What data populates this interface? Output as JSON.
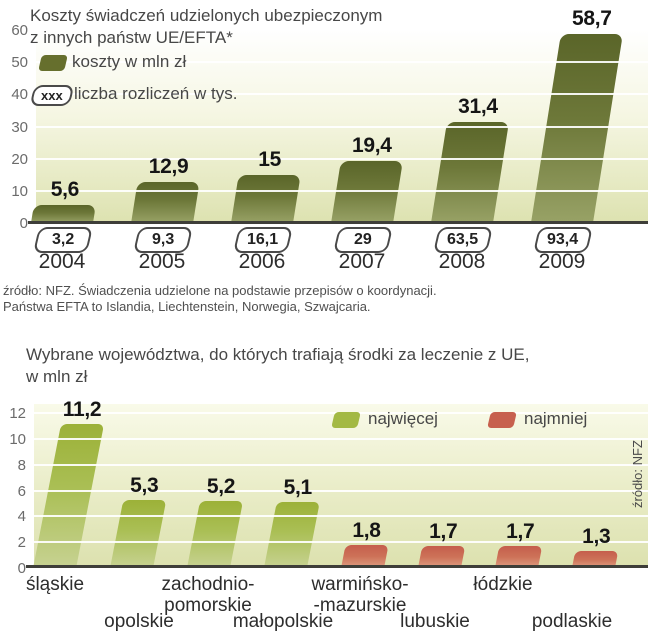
{
  "chart_data": [
    {
      "type": "bar",
      "title_lines": [
        "Koszty świadczeń udzielonych ubezpieczonym",
        "z innych państw UE/EFTA*"
      ],
      "legend": {
        "costs_label": "koszty w mln zł",
        "costs_color": "#666f2d",
        "pill_symbol": "xxx",
        "pill_label": "liczba rozliczeń w tys."
      },
      "categories": [
        "2004",
        "2005",
        "2006",
        "2007",
        "2008",
        "2009"
      ],
      "series": [
        {
          "name": "koszty w mln zł",
          "values": [
            5.6,
            12.9,
            15,
            19.4,
            31.4,
            58.7
          ],
          "labels": [
            "5,6",
            "12,9",
            "15",
            "19,4",
            "31,4",
            "58,7"
          ]
        },
        {
          "name": "liczba rozliczeń w tys.",
          "values": [
            3.2,
            9.3,
            16.1,
            29,
            63.5,
            93.4
          ],
          "labels": [
            "3,2",
            "9,3",
            "16,1",
            "29",
            "63,5",
            "93,4"
          ]
        }
      ],
      "ylim": [
        0,
        60
      ],
      "yticks": [
        0,
        10,
        20,
        30,
        40,
        50,
        60
      ],
      "grid": true,
      "bar_gradient": [
        "#5a6529",
        "#6d7839",
        "#98a266"
      ],
      "source_lines": [
        "źródło: NFZ. Świadczenia udzielone na podstawie przepisów o koordynacji.",
        "Państwa EFTA to Islandia, Liechtenstein, Norwegia, Szwajcaria."
      ]
    },
    {
      "type": "bar",
      "title_lines": [
        "Wybrane województwa, do których trafiają środki za leczenie z UE,",
        "w mln zł"
      ],
      "legend": [
        {
          "label": "najwięcej",
          "color": "#a3b944"
        },
        {
          "label": "najmniej",
          "color": "#c7604e"
        }
      ],
      "categories": [
        {
          "lines": [
            "śląskie"
          ],
          "row": 0,
          "group": "najwięcej"
        },
        {
          "lines": [
            "opolskie"
          ],
          "row": 1,
          "group": "najwięcej"
        },
        {
          "lines": [
            "zachodnio-",
            "pomorskie"
          ],
          "row": 0,
          "group": "najwięcej"
        },
        {
          "lines": [
            "małopolskie"
          ],
          "row": 1,
          "group": "najwięcej"
        },
        {
          "lines": [
            "warmińsko-",
            "-mazurskie"
          ],
          "row": 0,
          "group": "najmniej"
        },
        {
          "lines": [
            "lubuskie"
          ],
          "row": 1,
          "group": "najmniej"
        },
        {
          "lines": [
            "łódzkie"
          ],
          "row": 0,
          "group": "najmniej"
        },
        {
          "lines": [
            "podlaskie"
          ],
          "row": 1,
          "group": "najmniej"
        }
      ],
      "values": [
        11.2,
        5.3,
        5.2,
        5.1,
        1.8,
        1.7,
        1.7,
        1.3
      ],
      "value_labels": [
        "11,2",
        "5,3",
        "5,2",
        "5,1",
        "1,8",
        "1,7",
        "1,7",
        "1,3"
      ],
      "ylim": [
        0,
        12
      ],
      "yticks": [
        0,
        2,
        4,
        6,
        8,
        10,
        12
      ],
      "grid": true,
      "green_gradient": [
        "#9cb138",
        "#aabf55",
        "#c7d292"
      ],
      "red_gradient": [
        "#c55e4c",
        "#cd7258",
        "#df9e83"
      ],
      "source_vertical": "źródło: NFZ"
    }
  ]
}
